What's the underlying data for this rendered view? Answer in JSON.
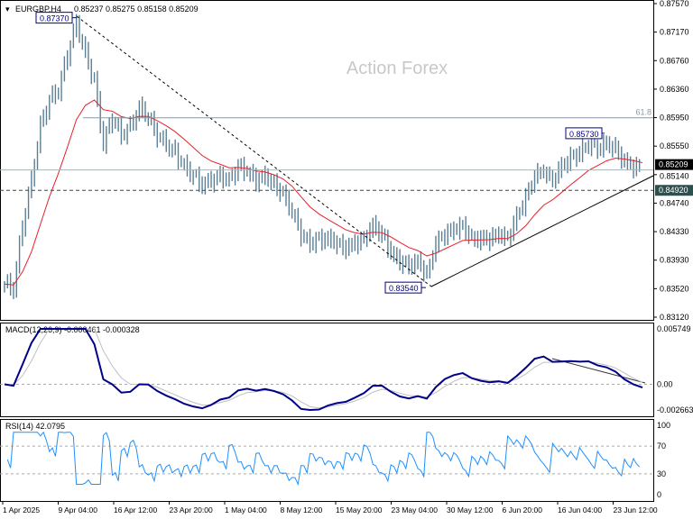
{
  "chart_data": [
    {
      "type": "ohlc",
      "title": "EURGBP,H4",
      "ohlc_header": [
        "0.85237",
        "0.85275",
        "0.85158",
        "0.85209"
      ],
      "watermark": "Action Forex",
      "ylim": [
        0.8312,
        0.8757
      ],
      "y_ticks": [
        "0.87570",
        "0.87170",
        "0.86760",
        "0.86360",
        "0.85950",
        "0.85550",
        "0.85140",
        "0.84740",
        "0.84330",
        "0.83930",
        "0.83520",
        "0.83120"
      ],
      "x_ticks": [
        "1 Apr 2025",
        "9 Apr 04:00",
        "16 Apr 12:00",
        "23 Apr 20:00",
        "1 May 04:00",
        "8 May 12:00",
        "15 May 20:00",
        "23 May 04:00",
        "30 May 12:00",
        "6 Jun 20:00",
        "16 Jun 04:00",
        "23 Jun 12:00"
      ],
      "closes": [
        0.8359,
        0.8353,
        0.8442,
        0.8506,
        0.8583,
        0.8621,
        0.8634,
        0.8685,
        0.873,
        0.8685,
        0.8647,
        0.8558,
        0.8596,
        0.857,
        0.8583,
        0.8609,
        0.8596,
        0.857,
        0.8558,
        0.8545,
        0.8526,
        0.8513,
        0.85,
        0.8506,
        0.8513,
        0.8506,
        0.8526,
        0.8519,
        0.8506,
        0.8513,
        0.85,
        0.8487,
        0.8462,
        0.843,
        0.8417,
        0.8423,
        0.8423,
        0.8417,
        0.841,
        0.8417,
        0.8423,
        0.8442,
        0.843,
        0.8404,
        0.8391,
        0.8385,
        0.8391,
        0.8372,
        0.8417,
        0.843,
        0.8436,
        0.8442,
        0.8423,
        0.8423,
        0.8423,
        0.843,
        0.8423,
        0.8455,
        0.8481,
        0.8513,
        0.8519,
        0.8506,
        0.8526,
        0.8538,
        0.8545,
        0.8558,
        0.8551,
        0.8558,
        0.8551,
        0.8532,
        0.8526,
        0.8521
      ],
      "annotations": {
        "high_label": "0.87370",
        "high": 0.8737,
        "swing_high_label": "0.85730",
        "swing_high": 0.8573,
        "low_label": "0.83540",
        "low": 0.8354,
        "fib_label": "61.8",
        "fib_level": 0.8595,
        "support_label": "0.84920",
        "support": 0.8492,
        "current_price_label": "0.85209",
        "current_price": 0.85209
      },
      "colors": {
        "bars": "#5b7f95",
        "ma": "#e8202a",
        "support_bg": "#2f4f4f",
        "price_bg": "#000000"
      }
    },
    {
      "type": "line",
      "title": "MACD(12,26,9) -0.000461 -0.000328",
      "ylim": [
        -0.002663,
        0.005749
      ],
      "y_ticks": [
        "0.005749",
        "0.00",
        "-0.002663"
      ],
      "colors": {
        "macd": "#00008b",
        "signal": "#c0c0c0"
      }
    },
    {
      "type": "line",
      "title": "RSI(14) 42.0795",
      "ylim": [
        0,
        100
      ],
      "y_ticks": [
        "100",
        "70",
        "30",
        "0"
      ],
      "levels": [
        70,
        30
      ],
      "colors": {
        "rsi": "#1e90ff"
      }
    }
  ]
}
